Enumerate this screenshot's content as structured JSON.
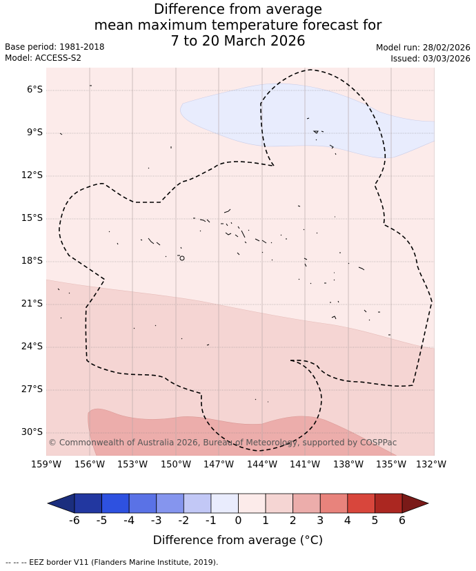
{
  "header": {
    "title_lines": [
      "Difference from average",
      "mean maximum temperature forecast for",
      "7 to 20 March 2026"
    ],
    "base_period": "Base period: 1981-2018",
    "model": "Model: ACCESS-S2",
    "model_run": "Model run: 28/02/2026",
    "issued": "Issued: 03/03/2026"
  },
  "map": {
    "lat_labels": [
      "6°S",
      "9°S",
      "12°S",
      "15°S",
      "18°S",
      "21°S",
      "24°S",
      "27°S",
      "30°S"
    ],
    "lon_labels": [
      "159°W",
      "156°W",
      "153°W",
      "150°W",
      "147°W",
      "144°W",
      "141°W",
      "138°W",
      "135°W",
      "132°W"
    ],
    "copyright": "© Commonwealth of Australia 2026, Bureau of Meteorology, supported by COSPPac",
    "colors": {
      "band_0_1": "#fcebea",
      "band_1_2": "#f5d5d3",
      "band_2_3": "#ecadab",
      "band_m1_0": "#e8ecfd"
    }
  },
  "colorbar": {
    "labels": [
      "-6",
      "-5",
      "-4",
      "-3",
      "-2",
      "-1",
      "0",
      "1",
      "2",
      "3",
      "4",
      "5",
      "6"
    ],
    "colors": [
      "#2237a0",
      "#2e51e0",
      "#5a72e6",
      "#8595ee",
      "#c2c8f6",
      "#e9ecfd",
      "#fcebea",
      "#f5d5d3",
      "#ecadab",
      "#e8837c",
      "#d8463c",
      "#ab2721"
    ],
    "extend_low_color": "#1b2e7e",
    "extend_high_color": "#7a1a18",
    "title": "Difference from average (°C)"
  },
  "footnote": "--  --  -- EEZ border V11 (Flanders Marine Institute, 2019)."
}
